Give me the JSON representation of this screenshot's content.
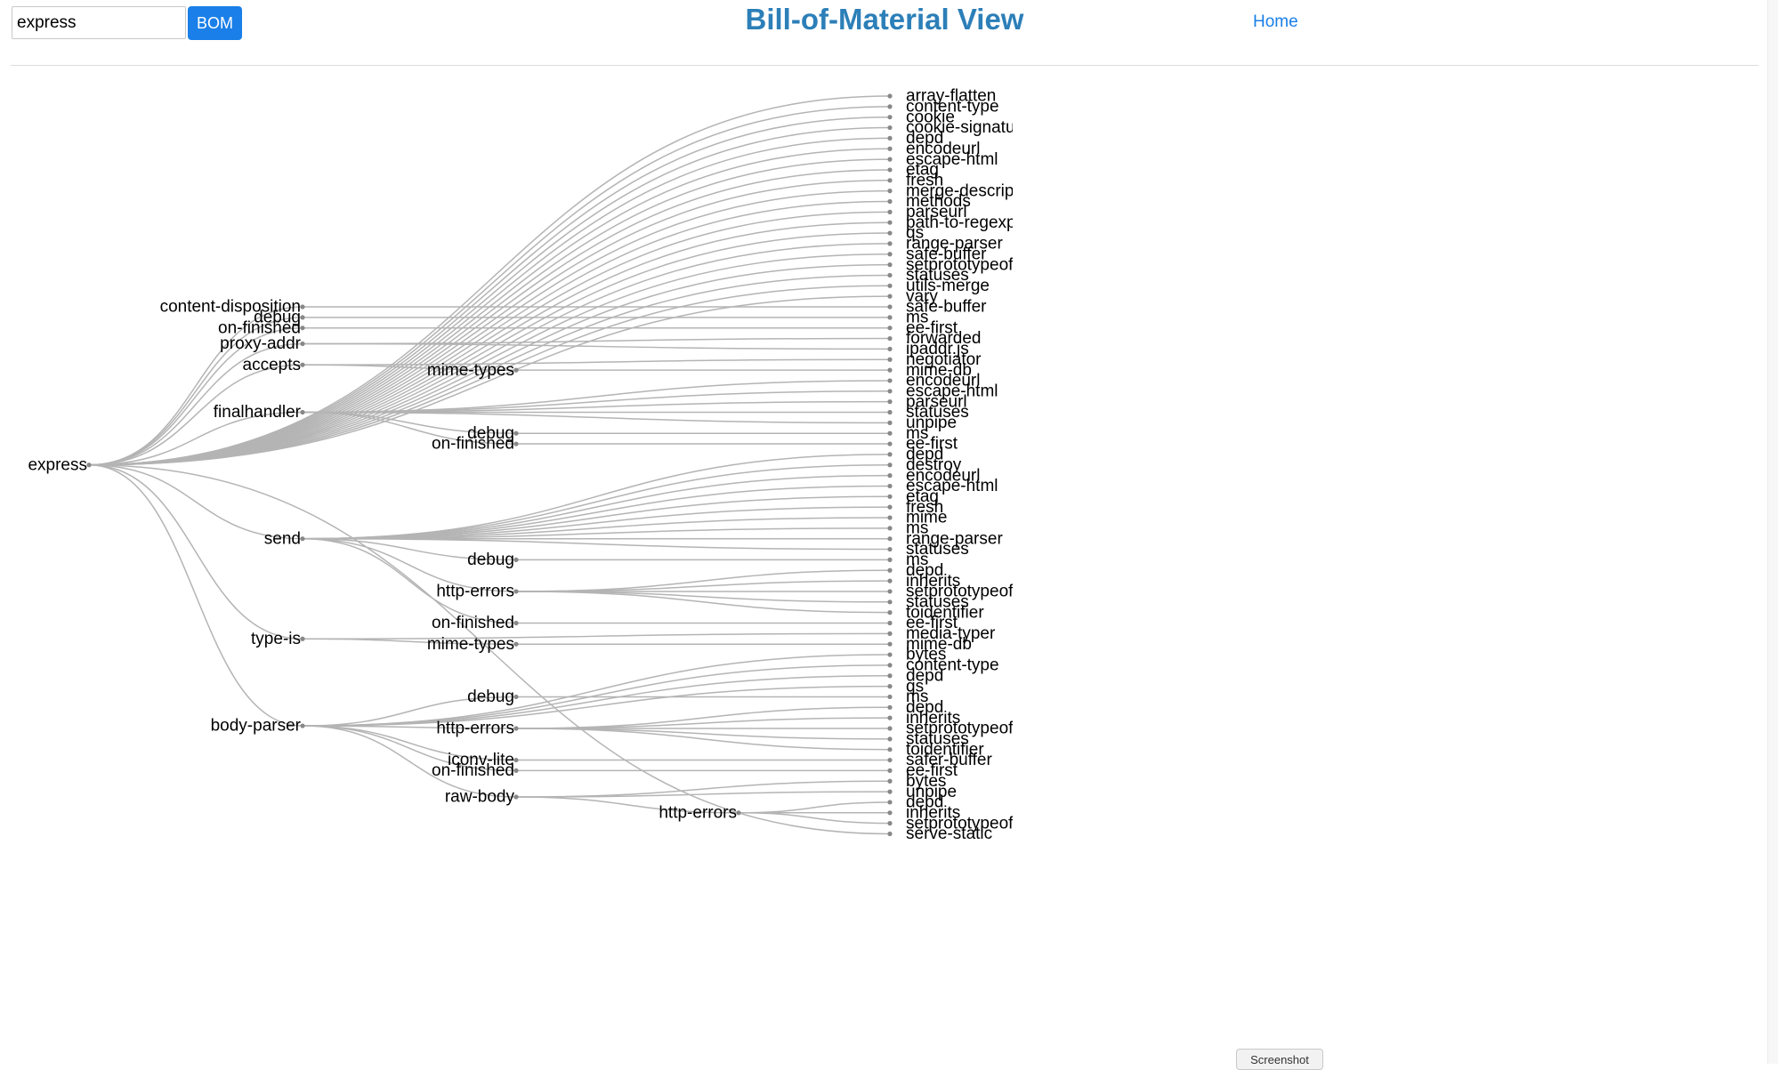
{
  "header": {
    "search": {
      "value": "express"
    },
    "bom_button": "BOM",
    "title": "Bill-of-Material View",
    "home_link": "Home",
    "screenshot_button": "Screenshot"
  },
  "tree": {
    "name": "express",
    "children": [
      {
        "name": "array-flatten"
      },
      {
        "name": "content-type"
      },
      {
        "name": "cookie"
      },
      {
        "name": "cookie-signature"
      },
      {
        "name": "depd"
      },
      {
        "name": "encodeurl"
      },
      {
        "name": "escape-html"
      },
      {
        "name": "etag"
      },
      {
        "name": "fresh"
      },
      {
        "name": "merge-descriptors"
      },
      {
        "name": "methods"
      },
      {
        "name": "parseurl"
      },
      {
        "name": "path-to-regexp"
      },
      {
        "name": "qs"
      },
      {
        "name": "range-parser"
      },
      {
        "name": "safe-buffer"
      },
      {
        "name": "setprototypeof"
      },
      {
        "name": "statuses"
      },
      {
        "name": "utils-merge"
      },
      {
        "name": "vary"
      },
      {
        "name": "content-disposition",
        "children": [
          {
            "name": "safe-buffer"
          }
        ]
      },
      {
        "name": "debug",
        "children": [
          {
            "name": "ms"
          }
        ]
      },
      {
        "name": "on-finished",
        "children": [
          {
            "name": "ee-first"
          }
        ]
      },
      {
        "name": "proxy-addr",
        "children": [
          {
            "name": "forwarded"
          },
          {
            "name": "ipaddr.js"
          }
        ]
      },
      {
        "name": "accepts",
        "children": [
          {
            "name": "negotiator"
          },
          {
            "name": "mime-types",
            "children": [
              {
                "name": "mime-db"
              }
            ]
          }
        ]
      },
      {
        "name": "finalhandler",
        "children": [
          {
            "name": "encodeurl"
          },
          {
            "name": "escape-html"
          },
          {
            "name": "parseurl"
          },
          {
            "name": "statuses"
          },
          {
            "name": "unpipe"
          },
          {
            "name": "debug",
            "children": [
              {
                "name": "ms"
              }
            ]
          },
          {
            "name": "on-finished",
            "children": [
              {
                "name": "ee-first"
              }
            ]
          }
        ]
      },
      {
        "name": "send",
        "children": [
          {
            "name": "depd"
          },
          {
            "name": "destroy"
          },
          {
            "name": "encodeurl"
          },
          {
            "name": "escape-html"
          },
          {
            "name": "etag"
          },
          {
            "name": "fresh"
          },
          {
            "name": "mime"
          },
          {
            "name": "ms"
          },
          {
            "name": "range-parser"
          },
          {
            "name": "statuses"
          },
          {
            "name": "debug",
            "children": [
              {
                "name": "ms"
              }
            ]
          },
          {
            "name": "http-errors",
            "children": [
              {
                "name": "depd"
              },
              {
                "name": "inherits"
              },
              {
                "name": "setprototypeof"
              },
              {
                "name": "statuses"
              },
              {
                "name": "toidentifier"
              }
            ]
          },
          {
            "name": "on-finished",
            "children": [
              {
                "name": "ee-first"
              }
            ]
          }
        ]
      },
      {
        "name": "type-is",
        "children": [
          {
            "name": "media-typer"
          },
          {
            "name": "mime-types",
            "children": [
              {
                "name": "mime-db"
              }
            ]
          }
        ]
      },
      {
        "name": "body-parser",
        "children": [
          {
            "name": "bytes"
          },
          {
            "name": "content-type"
          },
          {
            "name": "depd"
          },
          {
            "name": "qs"
          },
          {
            "name": "debug",
            "children": [
              {
                "name": "ms"
              }
            ]
          },
          {
            "name": "http-errors",
            "children": [
              {
                "name": "depd"
              },
              {
                "name": "inherits"
              },
              {
                "name": "setprototypeof"
              },
              {
                "name": "statuses"
              },
              {
                "name": "toidentifier"
              }
            ]
          },
          {
            "name": "iconv-lite",
            "children": [
              {
                "name": "safer-buffer"
              }
            ]
          },
          {
            "name": "on-finished",
            "children": [
              {
                "name": "ee-first"
              }
            ]
          },
          {
            "name": "raw-body",
            "children": [
              {
                "name": "bytes"
              },
              {
                "name": "unpipe"
              },
              {
                "name": "http-errors",
                "children": [
                  {
                    "name": "depd"
                  },
                  {
                    "name": "inherits"
                  },
                  {
                    "name": "setprototypeof"
                  }
                ]
              }
            ]
          }
        ]
      },
      {
        "name": "serve-static"
      }
    ]
  }
}
